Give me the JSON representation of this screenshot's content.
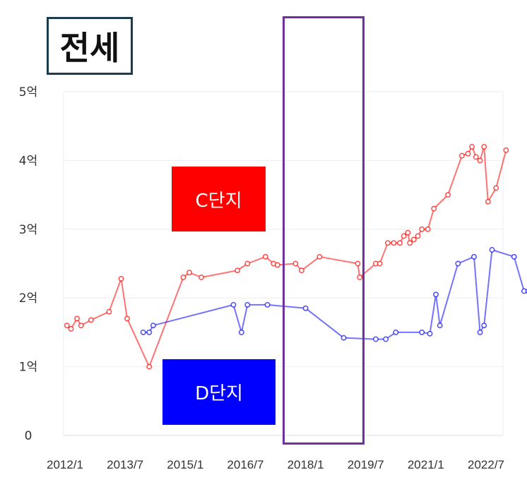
{
  "title": "전세",
  "chart_data": {
    "type": "line",
    "title": "전세",
    "xlabel": "",
    "ylabel": "",
    "y_ticks": [
      {
        "value": 0,
        "label": "0"
      },
      {
        "value": 1,
        "label": "1억"
      },
      {
        "value": 2,
        "label": "2억"
      },
      {
        "value": 3,
        "label": "3억"
      },
      {
        "value": 4,
        "label": "4억"
      },
      {
        "value": 5,
        "label": "5억"
      }
    ],
    "x_ticks": [
      {
        "value": 2012.0,
        "label": "2012/1"
      },
      {
        "value": 2013.5,
        "label": "2013/7"
      },
      {
        "value": 2015.0,
        "label": "2015/1"
      },
      {
        "value": 2016.5,
        "label": "2016/7"
      },
      {
        "value": 2018.0,
        "label": "2018/1"
      },
      {
        "value": 2019.5,
        "label": "2019/7"
      },
      {
        "value": 2021.0,
        "label": "2021/1"
      },
      {
        "value": 2022.5,
        "label": "2022/7"
      }
    ],
    "xlim": [
      2012.0,
      2023.0
    ],
    "ylim": [
      0,
      5
    ],
    "grid": true,
    "series": [
      {
        "name": "C단지",
        "color": "#ff0000",
        "points": [
          [
            2012.05,
            1.6
          ],
          [
            2012.15,
            1.55
          ],
          [
            2012.3,
            1.7
          ],
          [
            2012.4,
            1.6
          ],
          [
            2012.65,
            1.68
          ],
          [
            2013.1,
            1.8
          ],
          [
            2013.4,
            2.28
          ],
          [
            2013.55,
            1.7
          ],
          [
            2014.1,
            1.0
          ],
          [
            2014.95,
            2.3
          ],
          [
            2015.1,
            2.37
          ],
          [
            2015.4,
            2.3
          ],
          [
            2016.3,
            2.4
          ],
          [
            2016.55,
            2.5
          ],
          [
            2017.0,
            2.6
          ],
          [
            2017.2,
            2.5
          ],
          [
            2017.3,
            2.48
          ],
          [
            2017.75,
            2.5
          ],
          [
            2017.9,
            2.4
          ],
          [
            2018.35,
            2.6
          ],
          [
            2019.3,
            2.5
          ],
          [
            2019.35,
            2.3
          ],
          [
            2019.75,
            2.5
          ],
          [
            2019.85,
            2.5
          ],
          [
            2020.05,
            2.8
          ],
          [
            2020.2,
            2.8
          ],
          [
            2020.35,
            2.8
          ],
          [
            2020.45,
            2.9
          ],
          [
            2020.55,
            2.95
          ],
          [
            2020.6,
            2.8
          ],
          [
            2020.7,
            2.85
          ],
          [
            2020.8,
            2.9
          ],
          [
            2020.9,
            3.0
          ],
          [
            2021.05,
            3.0
          ],
          [
            2021.2,
            3.3
          ],
          [
            2021.55,
            3.5
          ],
          [
            2021.9,
            4.07
          ],
          [
            2022.05,
            4.1
          ],
          [
            2022.15,
            4.2
          ],
          [
            2022.25,
            4.05
          ],
          [
            2022.35,
            4.0
          ],
          [
            2022.45,
            4.2
          ],
          [
            2022.55,
            3.4
          ],
          [
            2022.75,
            3.6
          ],
          [
            2023.0,
            4.15
          ]
        ]
      },
      {
        "name": "D단지",
        "color": "#0000ff",
        "points": [
          [
            2013.95,
            1.5
          ],
          [
            2014.1,
            1.5
          ],
          [
            2014.2,
            1.6
          ],
          [
            2016.2,
            1.9
          ],
          [
            2016.4,
            1.5
          ],
          [
            2016.55,
            1.9
          ],
          [
            2017.05,
            1.9
          ],
          [
            2018.0,
            1.85
          ],
          [
            2018.95,
            1.42
          ],
          [
            2019.75,
            1.4
          ],
          [
            2020.0,
            1.4
          ],
          [
            2020.25,
            1.5
          ],
          [
            2020.9,
            1.5
          ],
          [
            2021.1,
            1.48
          ],
          [
            2021.25,
            2.05
          ],
          [
            2021.35,
            1.6
          ],
          [
            2021.8,
            2.5
          ],
          [
            2022.2,
            2.6
          ],
          [
            2022.35,
            1.5
          ],
          [
            2022.45,
            1.6
          ],
          [
            2022.65,
            2.7
          ],
          [
            2023.2,
            2.6
          ],
          [
            2023.45,
            2.1
          ],
          [
            2023.55,
            2.1
          ]
        ]
      }
    ]
  }
}
